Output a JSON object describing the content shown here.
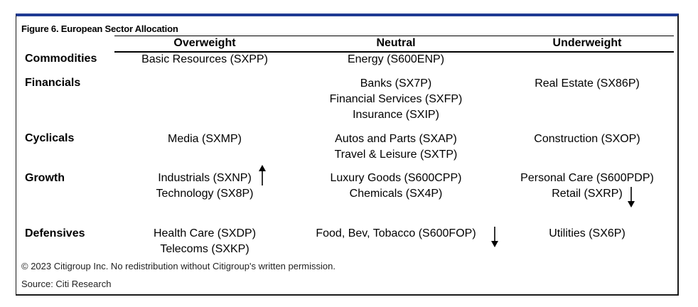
{
  "figure": {
    "title": "Figure 6. European Sector Allocation"
  },
  "columns": {
    "overweight": "Overweight",
    "neutral": "Neutral",
    "underweight": "Underweight"
  },
  "rows": {
    "commodities": {
      "label": "Commodities",
      "overweight": [
        "Basic Resources (SXPP)"
      ],
      "neutral": [
        "Energy (S600ENP)"
      ],
      "underweight": []
    },
    "financials": {
      "label": "Financials",
      "overweight": [],
      "neutral": [
        "Banks (SX7P)",
        "Financial Services (SXFP)",
        "Insurance (SXIP)"
      ],
      "underweight": [
        "Real Estate (SX86P)"
      ]
    },
    "cyclicals": {
      "label": "Cyclicals",
      "overweight": [
        "Media (SXMP)"
      ],
      "neutral": [
        "Autos and Parts (SXAP)",
        "Travel & Leisure (SXTP)"
      ],
      "underweight": [
        "Construction (SXOP)"
      ]
    },
    "growth": {
      "label": "Growth",
      "overweight": [
        "Industrials (SXNP)",
        "Technology (SX8P)"
      ],
      "neutral": [
        "Luxury Goods (S600CPP)",
        "Chemicals (SX4P)"
      ],
      "underweight": [
        "Personal Care (S600PDP)",
        "Retail (SXRP)"
      ]
    },
    "defensives": {
      "label": "Defensives",
      "overweight": [
        "Health Care (SXDP)",
        "Telecoms (SXKP)"
      ],
      "neutral": [
        "Food, Bev, Tobacco (S600FOP)"
      ],
      "underweight": [
        "Utilities (SX6P)"
      ]
    }
  },
  "footer": {
    "copyright": "© 2023 Citigroup Inc. No redistribution without Citigroup's written permission.",
    "source": "Source: Citi Research"
  }
}
